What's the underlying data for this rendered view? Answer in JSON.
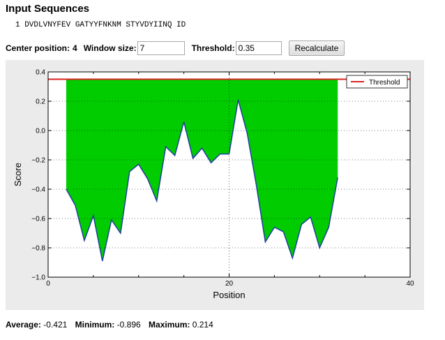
{
  "heading": "Input Sequences",
  "sequence_line": "1 DVDLVNYFEV GATYYFNKNM STYVDYIINQ ID",
  "controls": {
    "center_label": "Center position:",
    "center_value": "4",
    "window_label": "Window size:",
    "window_value": "7",
    "threshold_label": "Threshold:",
    "threshold_value": "0.35",
    "recalculate_label": "Recalculate"
  },
  "stats": {
    "average_label": "Average:",
    "average_value": "-0.421",
    "minimum_label": "Minimum:",
    "minimum_value": "-0.896",
    "maximum_label": "Maximum:",
    "maximum_value": "0.214"
  },
  "colors": {
    "fill": "#00cc00",
    "line": "#1f3f9f",
    "threshold": "#dd2222",
    "panel_bg": "#ebebeb"
  },
  "chart_data": {
    "type": "area",
    "xlabel": "Position",
    "ylabel": "Score",
    "xlim": [
      0,
      40
    ],
    "ylim": [
      -1.0,
      0.4
    ],
    "x_ticks": [
      0,
      20,
      40
    ],
    "x_tick_labels": [
      "0",
      "20",
      "40"
    ],
    "y_ticks": [
      0.4,
      0.2,
      0.0,
      -0.2,
      -0.4,
      -0.6,
      -0.8,
      -1.0
    ],
    "y_tick_labels": [
      "0.4",
      "0.2",
      "0.0",
      "−0.2",
      "−0.4",
      "−0.6",
      "−0.8",
      "−1.0"
    ],
    "grid": true,
    "legend_position": "top-right",
    "threshold": 0.35,
    "series": [
      {
        "name": "Threshold",
        "values": [
          0.35
        ]
      },
      {
        "x": [
          2,
          3,
          4,
          5,
          6,
          7,
          8,
          9,
          10,
          11,
          12,
          13,
          14,
          15,
          16,
          17,
          18,
          19,
          20,
          21,
          22,
          23,
          24,
          25,
          26,
          27,
          28,
          29,
          30,
          31,
          32
        ],
        "values": [
          -0.4,
          -0.51,
          -0.75,
          -0.58,
          -0.89,
          -0.61,
          -0.7,
          -0.28,
          -0.23,
          -0.33,
          -0.48,
          -0.11,
          -0.17,
          0.06,
          -0.19,
          -0.12,
          -0.22,
          -0.16,
          -0.16,
          0.21,
          -0.02,
          -0.37,
          -0.76,
          -0.66,
          -0.69,
          -0.87,
          -0.64,
          -0.59,
          -0.8,
          -0.66,
          -0.32
        ]
      }
    ]
  }
}
